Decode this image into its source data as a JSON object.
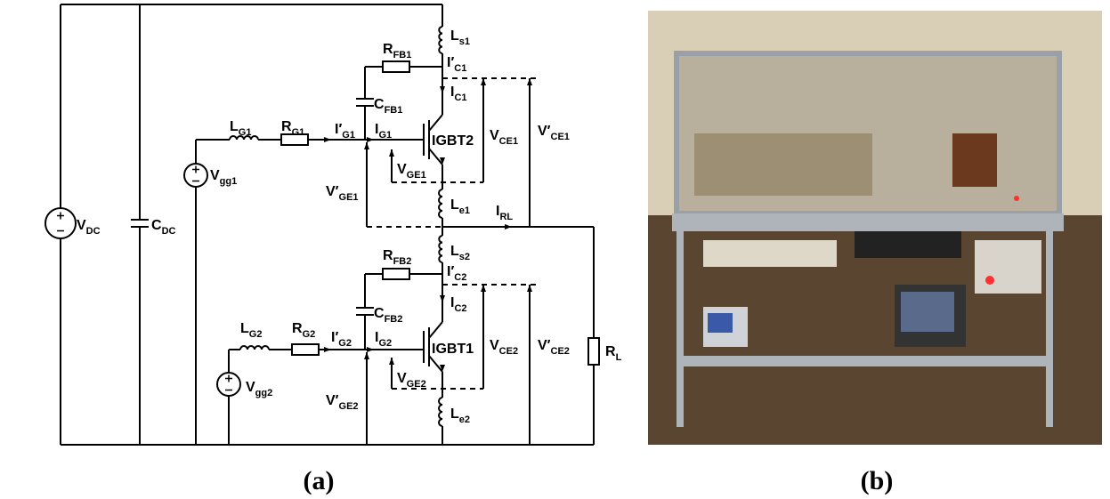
{
  "circuit": {
    "labels": [
      {
        "base": "V",
        "sub": "DC"
      },
      {
        "base": "C",
        "sub": "DC"
      },
      {
        "base": "L",
        "sub": "G1"
      },
      {
        "base": "R",
        "sub": "G1"
      },
      {
        "base": "V",
        "sub": "gg1"
      },
      {
        "base": "I′",
        "sub": "G1"
      },
      {
        "base": "I",
        "sub": "G1"
      },
      {
        "base": "R",
        "sub": "FB1"
      },
      {
        "base": "C",
        "sub": "FB1"
      },
      {
        "base": "L",
        "sub": "s1"
      },
      {
        "base": "I′",
        "sub": "C1"
      },
      {
        "base": "I",
        "sub": "C1"
      },
      {
        "base": "V",
        "sub": "CE1"
      },
      {
        "base": "V′",
        "sub": "CE1"
      },
      {
        "base": "IGBT2"
      },
      {
        "base": "V",
        "sub": "GE1"
      },
      {
        "base": "V′",
        "sub": "GE1"
      },
      {
        "base": "L",
        "sub": "e1"
      },
      {
        "base": "I",
        "sub": "RL"
      },
      {
        "base": "L",
        "sub": "s2"
      },
      {
        "base": "R",
        "sub": "FB2"
      },
      {
        "base": "I′",
        "sub": "C2"
      },
      {
        "base": "C",
        "sub": "FB2"
      },
      {
        "base": "I",
        "sub": "C2"
      },
      {
        "base": "V",
        "sub": "CE2"
      },
      {
        "base": "V′",
        "sub": "CE2"
      },
      {
        "base": "IGBT1"
      },
      {
        "base": "L",
        "sub": "G2"
      },
      {
        "base": "R",
        "sub": "G2"
      },
      {
        "base": "I′",
        "sub": "G2"
      },
      {
        "base": "I",
        "sub": "G2"
      },
      {
        "base": "V",
        "sub": "gg2"
      },
      {
        "base": "V",
        "sub": "GE2"
      },
      {
        "base": "V′",
        "sub": "GE2"
      },
      {
        "base": "L",
        "sub": "e2"
      },
      {
        "base": "R",
        "sub": "L"
      }
    ]
  },
  "captions": [
    "(a)",
    "(b)"
  ]
}
